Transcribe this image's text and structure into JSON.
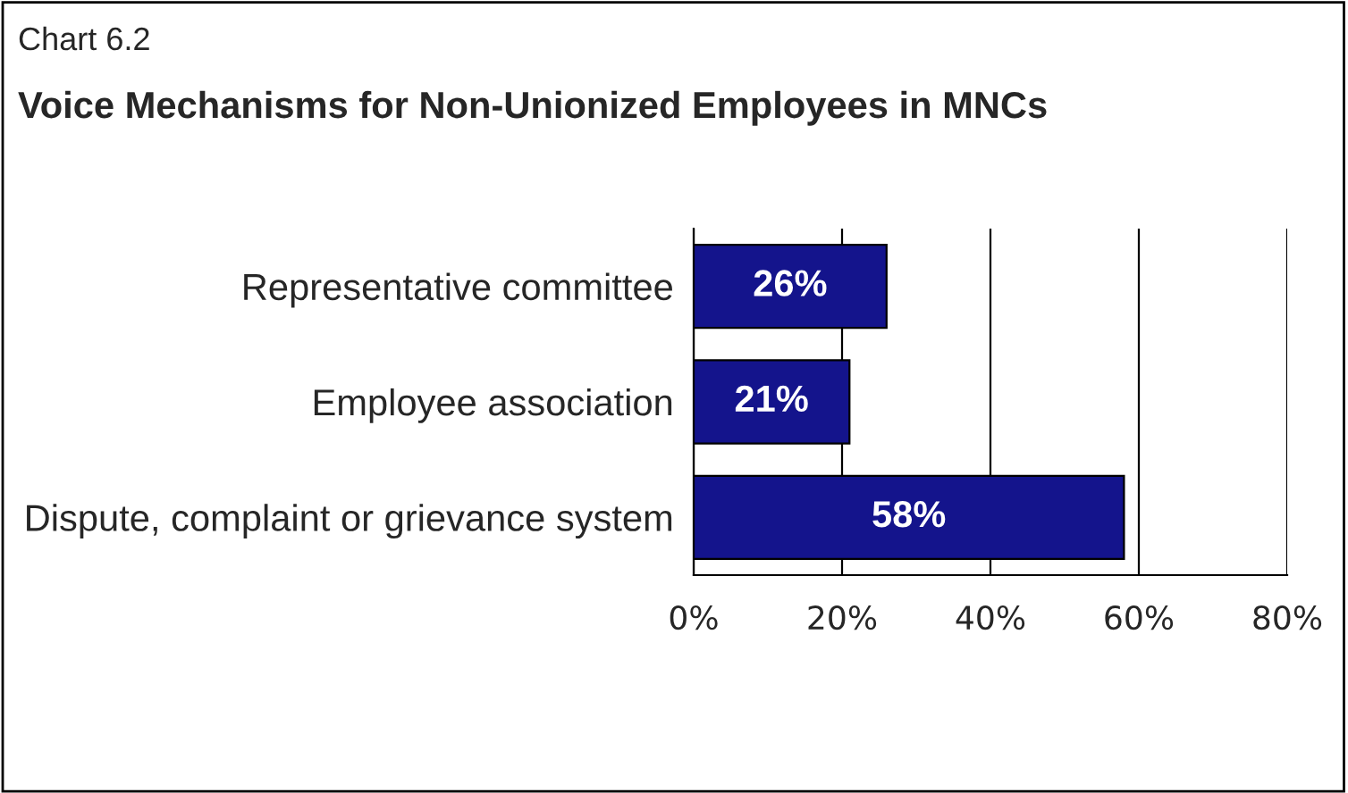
{
  "chart_data": {
    "type": "bar",
    "orientation": "horizontal",
    "title": "Voice Mechanisms for Non-Unionized Employees in MNCs",
    "annotations": [
      "Chart 6.2"
    ],
    "categories": [
      "Representative committee",
      "Employee association",
      "Dispute, complaint or grievance system"
    ],
    "values": [
      26,
      21,
      58
    ],
    "color": "#14148c",
    "value_labels": [
      "26%",
      "21%",
      "58%"
    ],
    "xlim": [
      0,
      80
    ],
    "xticks": [
      {
        "value": 0,
        "label": "0%"
      },
      {
        "value": 20,
        "label": "20%"
      },
      {
        "value": 40,
        "label": "40%"
      },
      {
        "value": 60,
        "label": "60%"
      },
      {
        "value": 80,
        "label": "80%"
      }
    ],
    "grid": "x",
    "legend": false
  }
}
